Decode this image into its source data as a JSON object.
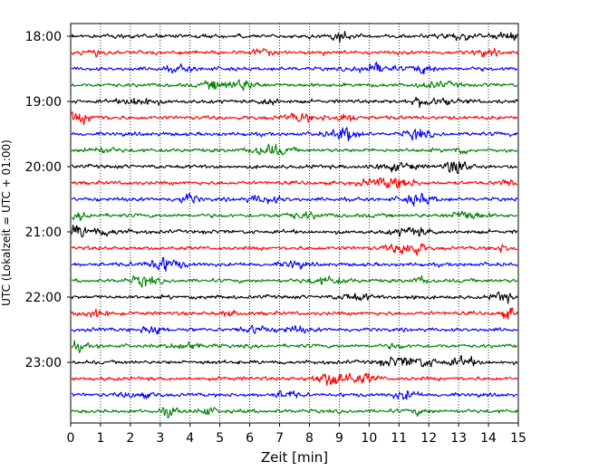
{
  "chart_data": {
    "type": "line",
    "title": "",
    "xlabel": "Zeit  [min]",
    "ylabel": "UTC (Lokalzeit = UTC + 01:00)",
    "xlim": [
      0,
      15
    ],
    "xticks": [
      0,
      1,
      2,
      3,
      4,
      5,
      6,
      7,
      8,
      9,
      10,
      11,
      12,
      13,
      14,
      15
    ],
    "vertical_grid": true,
    "grid_style": "dotted",
    "y_tick_labels": [
      "18:00",
      "19:00",
      "20:00",
      "21:00",
      "22:00",
      "23:00"
    ],
    "trace_start_times": [
      "18:00",
      "18:15",
      "18:30",
      "18:45",
      "19:00",
      "19:15",
      "19:30",
      "19:45",
      "20:00",
      "20:15",
      "20:30",
      "20:45",
      "21:00",
      "21:15",
      "21:30",
      "21:45",
      "22:00",
      "22:15",
      "22:30",
      "22:45",
      "23:00",
      "23:15",
      "23:30",
      "23:45"
    ],
    "trace_minutes_per_line": 15,
    "trace_colors": [
      "#000000",
      "#ff0000",
      "#0000ff",
      "#008000"
    ],
    "legend": "none"
  }
}
